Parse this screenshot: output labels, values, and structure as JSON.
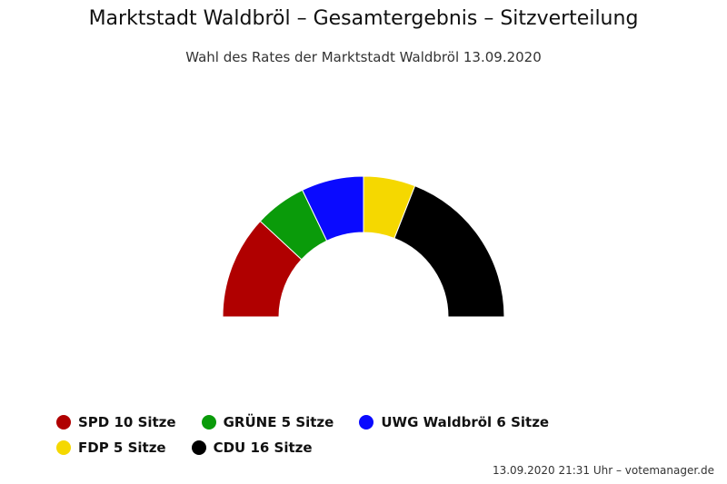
{
  "chart_data": {
    "type": "pie",
    "variant": "parliament-semicircle",
    "title": "Marktstadt Waldbröl – Gesamtergebnis – Sitzverteilung",
    "subtitle": "Wahl des Rates der Marktstadt Waldbröl 13.09.2020",
    "unit": "Sitze",
    "series": [
      {
        "name": "SPD",
        "value": 10,
        "color": "#b00000"
      },
      {
        "name": "GRÜNE",
        "value": 5,
        "color": "#0a9b0a"
      },
      {
        "name": "UWG Waldbröl",
        "value": 6,
        "color": "#0a0aff"
      },
      {
        "name": "FDP",
        "value": 5,
        "color": "#f5d800"
      },
      {
        "name": "CDU",
        "value": 16,
        "color": "#000000"
      }
    ],
    "legend_position": "bottom"
  },
  "credits": "13.09.2020 21:31 Uhr – votemanager.de"
}
